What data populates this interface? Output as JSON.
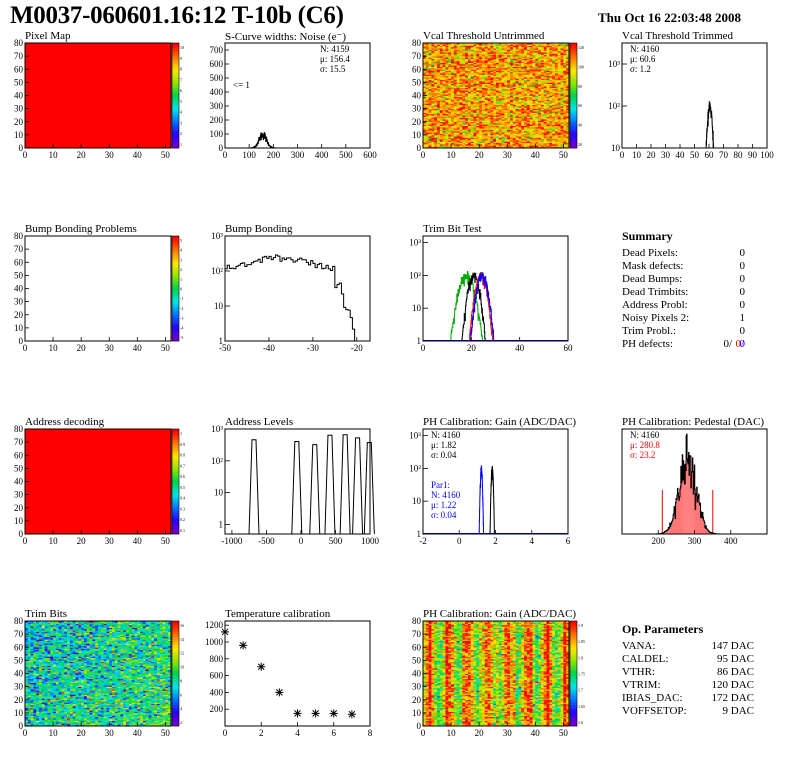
{
  "header": {
    "title": "M0037-060601.16:12 T-10b (C6)",
    "date": "Thu Oct 16 22:03:48 2008"
  },
  "summary": {
    "title": "Summary",
    "rows": [
      {
        "label": "Dead Pixels:",
        "value": "0"
      },
      {
        "label": "Mask defects:",
        "value": "0"
      },
      {
        "label": "Dead Bumps:",
        "value": "0"
      },
      {
        "label": "Dead Trimbits:",
        "value": "0"
      },
      {
        "label": "Address Probl:",
        "value": "0"
      },
      {
        "label": "Noisy Pixels 2:",
        "value": "1"
      },
      {
        "label": "Trim Probl.:",
        "value": "0"
      }
    ],
    "ph_defects": {
      "label": "PH defects:",
      "v1": "0/",
      "v2": "0/",
      "v3": "0"
    }
  },
  "op_params": {
    "title": "Op. Parameters",
    "rows": [
      {
        "label": "VANA:",
        "value": "147 DAC"
      },
      {
        "label": "CALDEL:",
        "value": "95 DAC"
      },
      {
        "label": "VTHR:",
        "value": "86 DAC"
      },
      {
        "label": "VTRIM:",
        "value": "120 DAC"
      },
      {
        "label": "IBIAS_DAC:",
        "value": "172 DAC"
      },
      {
        "label": "VOFFSETOP:",
        "value": "9 DAC"
      }
    ]
  },
  "colors": {
    "red": "#ff0000",
    "green": "#00aa00",
    "blue": "#0000ff",
    "black": "#000000"
  },
  "chart_data": [
    {
      "id": "pixel_map",
      "type": "heatmap",
      "title": "Pixel Map",
      "xlim": [
        0,
        52
      ],
      "ylim": [
        0,
        80
      ],
      "xticks": [
        0,
        10,
        20,
        30,
        40,
        50
      ],
      "yticks": [
        0,
        10,
        20,
        30,
        40,
        50,
        60,
        70,
        80
      ],
      "fill": "uniform",
      "value": 10,
      "palette_ticks": [
        "10",
        "9",
        "8",
        "7",
        "6",
        "5",
        "4",
        "3",
        "2",
        "1"
      ]
    },
    {
      "id": "scurve",
      "type": "histogram",
      "title": "S-Curve widths: Noise (e⁻)",
      "xlim": [
        0,
        600
      ],
      "ylim": [
        0,
        750
      ],
      "xticks": [
        0,
        100,
        200,
        300,
        400,
        500,
        600
      ],
      "yticks": [
        0,
        100,
        200,
        300,
        400,
        500,
        600,
        700
      ],
      "log": false,
      "peaks": [
        {
          "mean": 156.4,
          "sigma": 15.5,
          "n": 4159,
          "color": "black"
        }
      ],
      "stats": [
        "N: 4159",
        "μ: 156.4",
        "σ: 15.5"
      ],
      "annotation": "<= 1"
    },
    {
      "id": "vcal_untrimmed",
      "type": "heatmap",
      "title": "Vcal Threshold Untrimmed",
      "xlim": [
        0,
        52
      ],
      "ylim": [
        0,
        80
      ],
      "xticks": [
        0,
        10,
        20,
        30,
        40,
        50
      ],
      "yticks": [
        0,
        10,
        20,
        30,
        40,
        50,
        60,
        70,
        80
      ],
      "fill": "noise-warm",
      "palette_ticks": [
        "120",
        "100",
        "80",
        "60",
        "40",
        "20"
      ]
    },
    {
      "id": "vcal_trimmed",
      "type": "histogram",
      "title": "Vcal Threshold Trimmed",
      "xlim": [
        0,
        100
      ],
      "log": true,
      "logrange": [
        1,
        3.5
      ],
      "xticks": [
        0,
        10,
        20,
        30,
        40,
        50,
        60,
        70,
        80,
        90,
        100
      ],
      "yticks_log": [
        "10",
        "10²",
        "10³"
      ],
      "ymin_label": "10",
      "peaks": [
        {
          "mean": 60.6,
          "sigma": 1.2,
          "n": 4160,
          "color": "black"
        }
      ],
      "stats": [
        "N: 4160",
        "μ: 60.6",
        "σ: 1.2"
      ]
    },
    {
      "id": "bump_problems",
      "type": "heatmap",
      "title": "Bump Bonding Problems",
      "xlim": [
        0,
        52
      ],
      "ylim": [
        0,
        80
      ],
      "xticks": [
        0,
        10,
        20,
        30,
        40,
        50
      ],
      "yticks": [
        0,
        10,
        20,
        30,
        40,
        50,
        60,
        70,
        80
      ],
      "fill": "empty",
      "palette_ticks": [
        "5",
        "4",
        "3",
        "2",
        "1",
        "0",
        "-1",
        "-2",
        "-3",
        "-4",
        "-5"
      ]
    },
    {
      "id": "bump_bonding",
      "type": "histogram",
      "title": "Bump Bonding",
      "xlim": [
        -50,
        -17
      ],
      "log": true,
      "logrange": [
        0,
        3
      ],
      "xticks": [
        -50,
        -40,
        -30,
        -20
      ],
      "yticks_log": [
        "1",
        "10",
        "10²",
        "10³"
      ],
      "shape": "bump"
    },
    {
      "id": "trim_bit_test",
      "type": "histogram",
      "title": "Trim Bit Test",
      "xlim": [
        0,
        60
      ],
      "log": true,
      "logrange": [
        0,
        3.2
      ],
      "xticks": [
        0,
        20,
        40,
        60
      ],
      "yticks_log": [
        "1",
        "10",
        "10²",
        "10³"
      ],
      "peaks": [
        {
          "mean": 18,
          "sigma": 2.2,
          "n": 4160,
          "color": "green"
        },
        {
          "mean": 21,
          "sigma": 1.6,
          "n": 4160,
          "color": "black"
        },
        {
          "mean": 24,
          "sigma": 1.6,
          "n": 4160,
          "color": "red"
        },
        {
          "mean": 24.5,
          "sigma": 1.6,
          "n": 4160,
          "color": "blue"
        }
      ]
    },
    {
      "id": "address_decoding",
      "type": "heatmap",
      "title": "Address decoding",
      "xlim": [
        0,
        52
      ],
      "ylim": [
        0,
        80
      ],
      "xticks": [
        0,
        10,
        20,
        30,
        40,
        50
      ],
      "yticks": [
        0,
        10,
        20,
        30,
        40,
        50,
        60,
        70,
        80
      ],
      "fill": "uniform",
      "value": 1,
      "palette_ticks": [
        "1",
        "0.9",
        "0.8",
        "0.7",
        "0.6",
        "0.5",
        "0.4",
        "0.3",
        "0.2",
        "0.1"
      ]
    },
    {
      "id": "address_levels",
      "type": "histogram",
      "title": "Address Levels",
      "xlim": [
        -1100,
        1000
      ],
      "log": true,
      "logrange": [
        -0.3,
        3
      ],
      "xticks": [
        -1000,
        -500,
        0,
        500,
        1000
      ],
      "yticks_log": [
        "1",
        "10",
        "10²",
        "10³"
      ],
      "spikes": [
        -680,
        -60,
        200,
        420,
        640,
        820,
        990
      ],
      "spike_height": 2.6
    },
    {
      "id": "ph_gain",
      "type": "histogram",
      "title": "PH Calibration: Gain (ADC/DAC)",
      "xlim": [
        -2,
        6
      ],
      "log": true,
      "logrange": [
        0,
        3.2
      ],
      "xticks": [
        -2,
        0,
        2,
        4,
        6
      ],
      "yticks_log": [
        "1",
        "10",
        "10²",
        "10³"
      ],
      "peaks": [
        {
          "mean": 1.82,
          "sigma": 0.04,
          "n": 4160,
          "color": "black"
        },
        {
          "mean": 1.22,
          "sigma": 0.04,
          "n": 4160,
          "color": "blue"
        }
      ],
      "stats": [
        "N: 4160",
        "μ: 1.82",
        "σ: 0.04"
      ],
      "stats2_title": "Par1:",
      "stats2": [
        "N: 4160",
        "μ: 1.22",
        "σ: 0.04"
      ]
    },
    {
      "id": "ph_pedestal",
      "type": "histogram",
      "title": "PH Calibration: Pedestal (DAC)",
      "xlim": [
        100,
        500
      ],
      "log": false,
      "xticks": [
        200,
        300,
        400
      ],
      "peaks": [
        {
          "mean": 280.8,
          "sigma": 23.2,
          "n": 4160,
          "color": "black"
        }
      ],
      "stats": [
        "N: 4160"
      ],
      "stats_red": [
        "μ: 280.8",
        "σ: 23.2"
      ]
    },
    {
      "id": "trim_bits",
      "type": "heatmap",
      "title": "Trim Bits",
      "xlim": [
        0,
        52
      ],
      "ylim": [
        0,
        80
      ],
      "xticks": [
        0,
        10,
        20,
        30,
        40,
        50
      ],
      "yticks": [
        0,
        10,
        20,
        30,
        40,
        50,
        60,
        70,
        80
      ],
      "fill": "trim",
      "palette_ticks": [
        "16",
        "14",
        "12",
        "10",
        "8",
        "6",
        "4",
        "2"
      ]
    },
    {
      "id": "temp_cal",
      "type": "scatter",
      "title": "Temperature calibration",
      "xlim": [
        0,
        8
      ],
      "ylim": [
        0,
        1250
      ],
      "xticks": [
        0,
        2,
        4,
        6,
        8
      ],
      "yticks": [
        200,
        400,
        600,
        800,
        1000,
        1200
      ],
      "x": [
        0,
        1,
        2,
        3,
        4,
        5,
        6,
        7
      ],
      "y": [
        1120,
        960,
        705,
        400,
        150,
        150,
        150,
        140
      ]
    },
    {
      "id": "ph_gain_map",
      "type": "heatmap",
      "title": "PH Calibration: Gain (ADC/DAC)",
      "xlim": [
        0,
        52
      ],
      "ylim": [
        0,
        80
      ],
      "xticks": [
        0,
        10,
        20,
        30,
        40,
        50
      ],
      "yticks": [
        0,
        10,
        20,
        30,
        40,
        50,
        60,
        70,
        80
      ],
      "fill": "gain",
      "palette_ticks": [
        "1.9",
        "1.85",
        "1.8",
        "1.75",
        "1.7",
        "1.65",
        "1.6"
      ]
    }
  ]
}
